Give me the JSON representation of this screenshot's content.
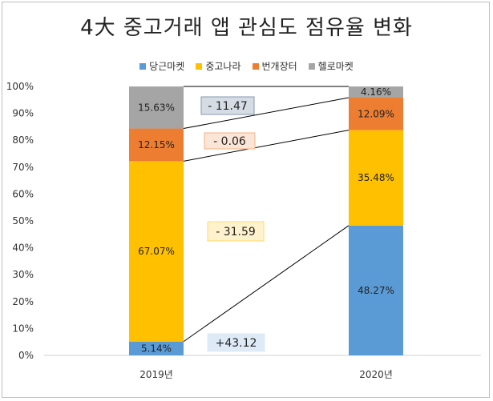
{
  "chart_data": {
    "type": "bar",
    "stacked": true,
    "title": "4大 중고거래 앱 관심도 점유율 변화",
    "categories": [
      "2019년",
      "2020년"
    ],
    "series": [
      {
        "name": "당근마켓",
        "color": "#5b9bd5",
        "values": [
          5.14,
          48.27
        ],
        "labels": [
          "5.14%",
          "48.27%"
        ]
      },
      {
        "name": "중고나라",
        "color": "#ffc000",
        "values": [
          67.07,
          35.48
        ],
        "labels": [
          "67.07%",
          "35.48%"
        ]
      },
      {
        "name": "번개장터",
        "color": "#ed7d31",
        "values": [
          12.15,
          12.09
        ],
        "labels": [
          "12.15%",
          "12.09%"
        ]
      },
      {
        "name": "헬로마켓",
        "color": "#a5a5a5",
        "values": [
          15.63,
          4.16
        ],
        "labels": [
          "15.63%",
          "4.16%"
        ]
      }
    ],
    "ylim": [
      0,
      100
    ],
    "yticks": [
      "0%",
      "10%",
      "20%",
      "30%",
      "40%",
      "50%",
      "60%",
      "70%",
      "80%",
      "90%",
      "100%"
    ],
    "legend_position": "top",
    "grid": false,
    "annotations": [
      {
        "text": "- 11.47",
        "series": "헬로마켓",
        "bg": "#d6dce4",
        "border": "#8497b0"
      },
      {
        "text": "- 0.06",
        "series": "번개장터",
        "bg": "#fbe5d6",
        "border": "#f4b183"
      },
      {
        "text": "- 31.59",
        "series": "중고나라",
        "bg": "#fff2cc",
        "border": "#ffd966"
      },
      {
        "text": "+43.12",
        "series": "당근마켓",
        "bg": "#deebf7",
        "border": "#deebf7"
      }
    ]
  }
}
